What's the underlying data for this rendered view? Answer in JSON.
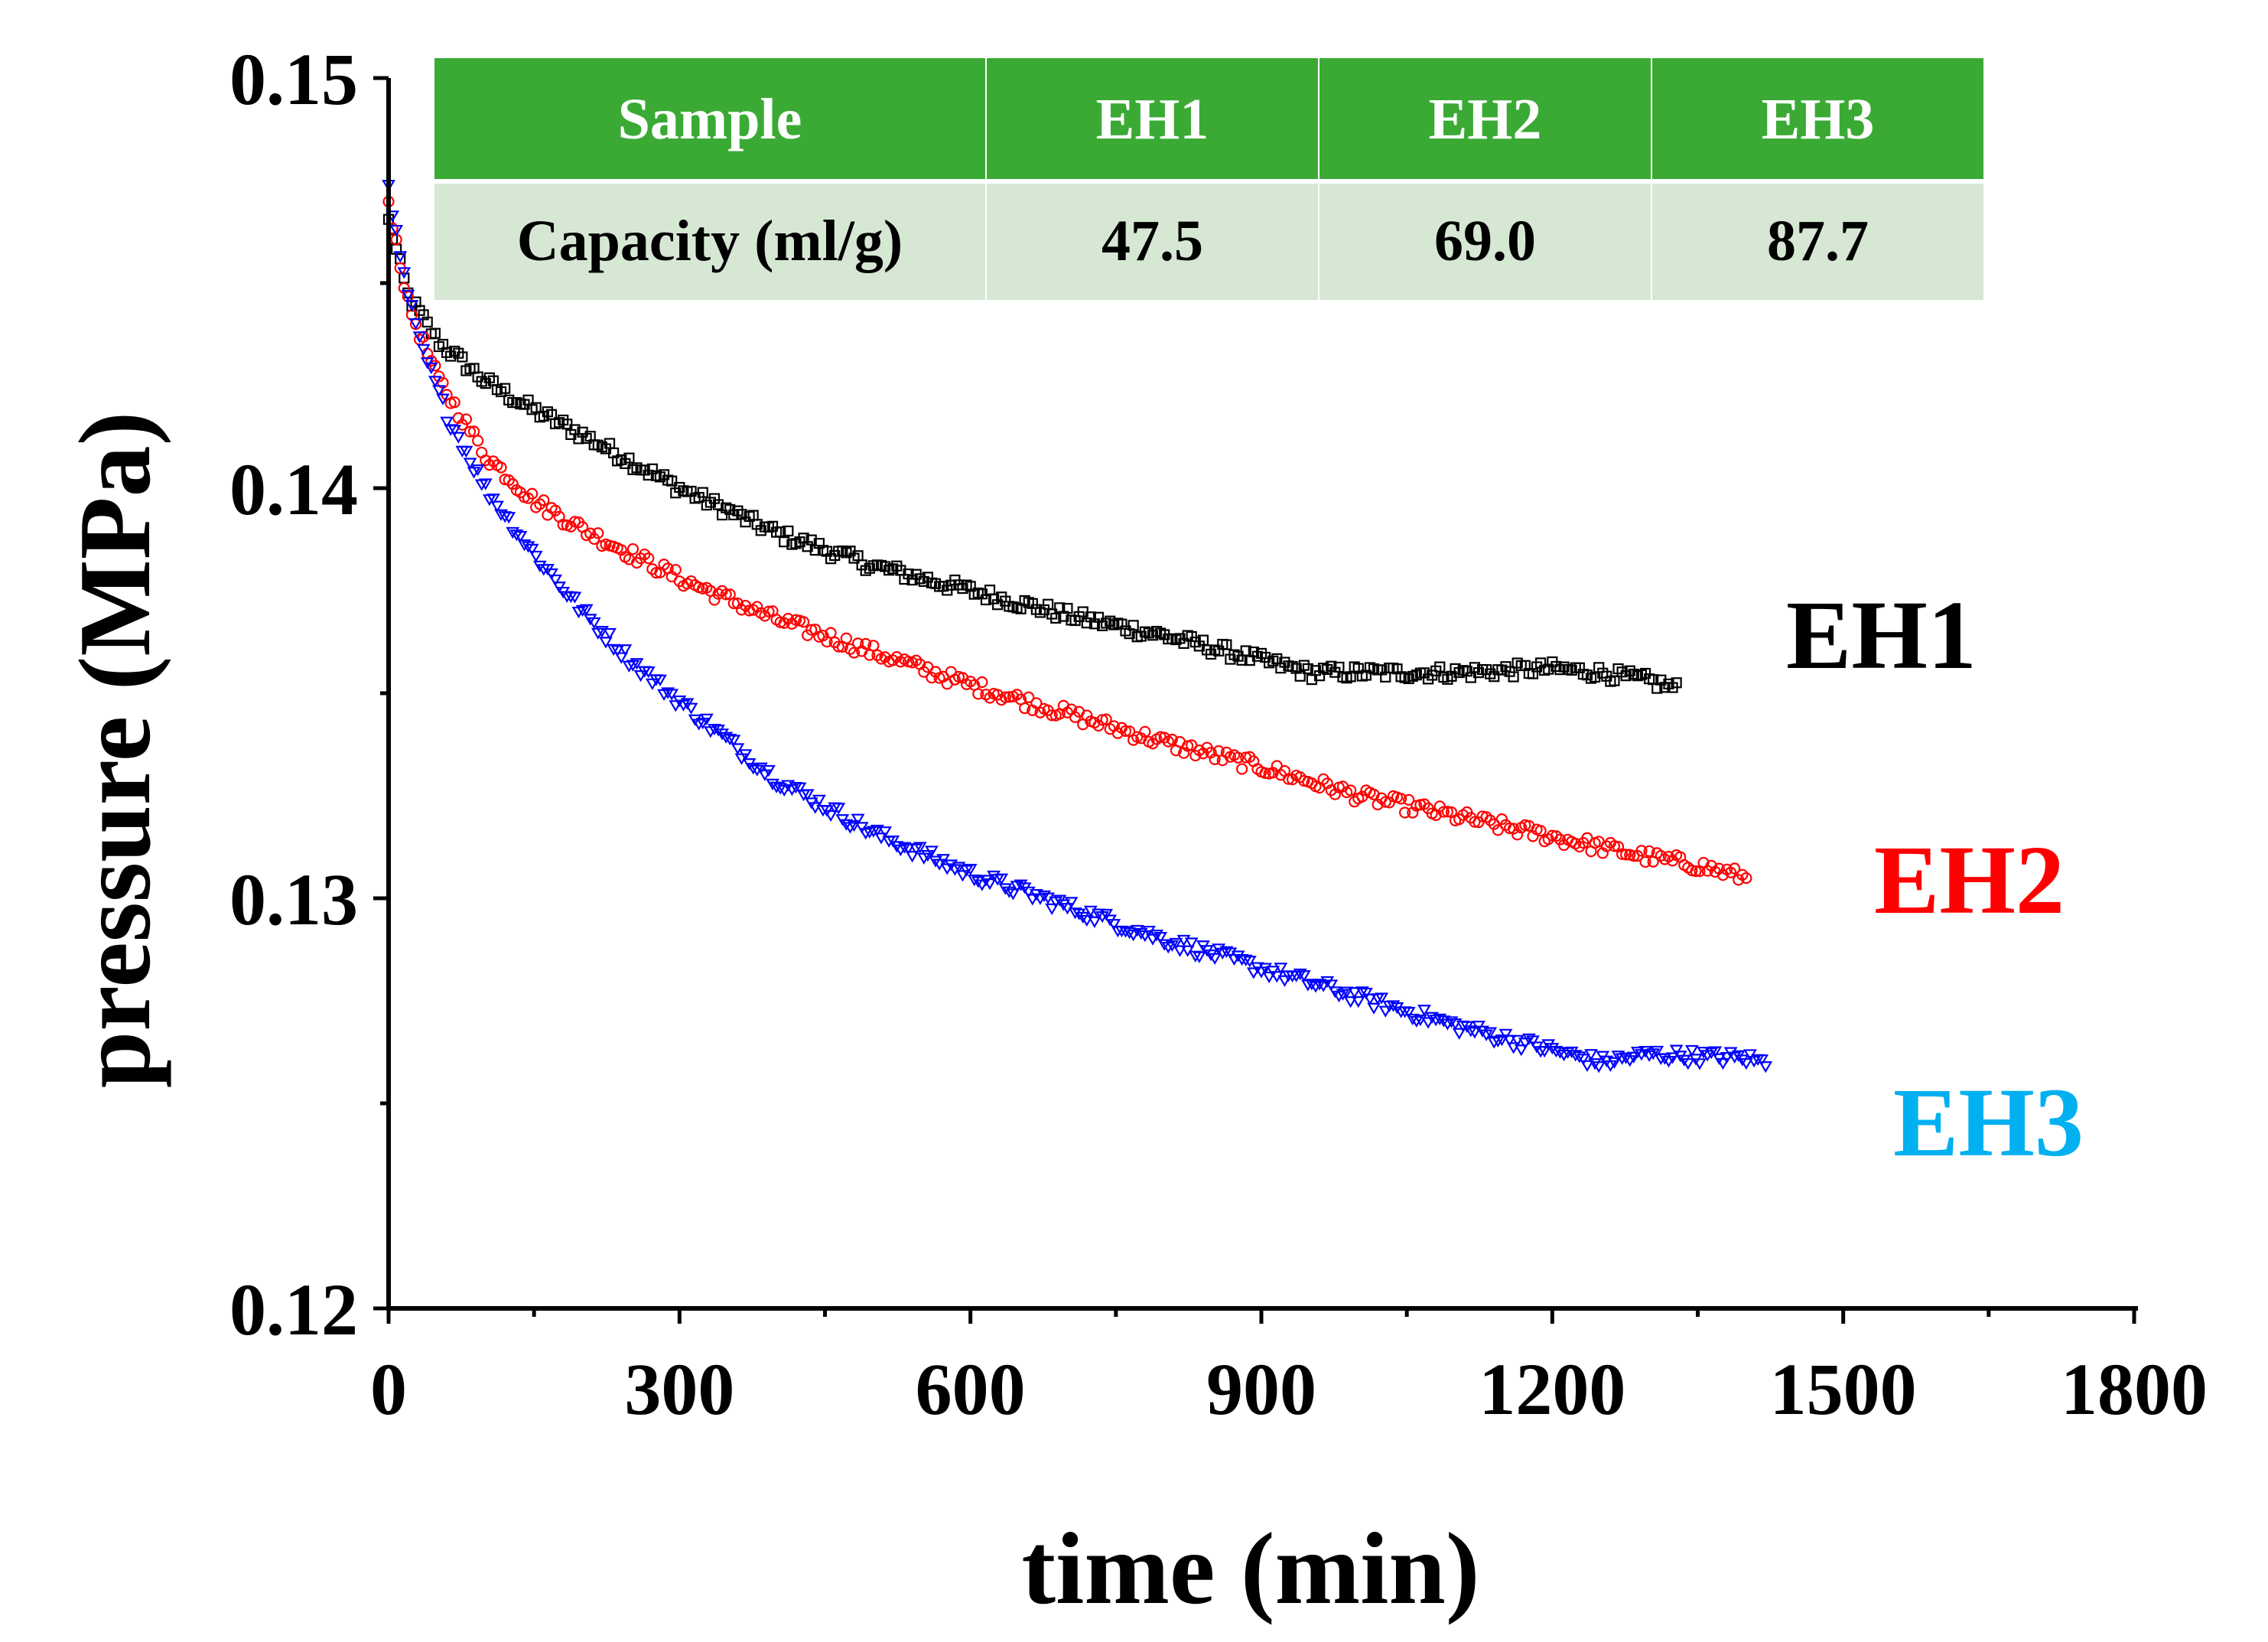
{
  "chart_data": {
    "type": "scatter",
    "title": "",
    "xlabel": "time (min)",
    "ylabel": "pressure (MPa)",
    "xlim": [
      0,
      1800
    ],
    "ylim": [
      0.12,
      0.15
    ],
    "xticks": [
      0,
      300,
      600,
      900,
      1200,
      1500,
      1800
    ],
    "xtick_labels": [
      "0",
      "300",
      "600",
      "900",
      "1200",
      "1500",
      "1800"
    ],
    "yticks": [
      0.12,
      0.13,
      0.14,
      0.15
    ],
    "ytick_labels": [
      "0.12",
      "0.13",
      "0.14",
      "0.15"
    ],
    "grid": false,
    "series": [
      {
        "name": "EH1",
        "label": "EH1",
        "color": "#000000",
        "marker": "square",
        "x": [
          0,
          20,
          50,
          100,
          150,
          200,
          300,
          400,
          500,
          600,
          700,
          800,
          900,
          950,
          1000,
          1100,
          1200,
          1250,
          1300,
          1330
        ],
        "y": [
          0.1465,
          0.1447,
          0.1436,
          0.1426,
          0.1419,
          0.1413,
          0.14,
          0.1389,
          0.1381,
          0.1375,
          0.1369,
          0.1364,
          0.1358,
          0.1355,
          0.1355,
          0.1355,
          0.1356,
          0.1355,
          0.1353,
          0.1351
        ]
      },
      {
        "name": "EH2",
        "label": "EH2",
        "color": "#ff0000",
        "marker": "circle",
        "x": [
          0,
          20,
          50,
          100,
          150,
          200,
          300,
          400,
          500,
          600,
          700,
          800,
          900,
          1000,
          1100,
          1200,
          1300,
          1350,
          1400
        ],
        "y": [
          0.147,
          0.1445,
          0.1427,
          0.1408,
          0.1397,
          0.139,
          0.1378,
          0.1368,
          0.136,
          0.1352,
          0.1345,
          0.1338,
          0.1332,
          0.1325,
          0.132,
          0.1315,
          0.131,
          0.1308,
          0.1305
        ]
      },
      {
        "name": "EH3",
        "label": "EH3",
        "color": "#0000ff",
        "label_color": "#00b0f0",
        "marker": "triangle-down",
        "x": [
          0,
          10,
          30,
          60,
          100,
          150,
          200,
          250,
          300,
          400,
          500,
          600,
          700,
          800,
          900,
          1000,
          1100,
          1200,
          1250,
          1300,
          1400,
          1420
        ],
        "y": [
          0.1475,
          0.1458,
          0.1437,
          0.1418,
          0.14,
          0.1384,
          0.137,
          0.1358,
          0.1348,
          0.1329,
          0.1316,
          0.1306,
          0.1298,
          0.129,
          0.1283,
          0.1276,
          0.1269,
          0.1263,
          0.126,
          0.1262,
          0.1261,
          0.126
        ]
      }
    ],
    "table": {
      "header_color": "#3aaa35",
      "body_color": "#d6e8d4",
      "columns": [
        "Sample",
        "EH1",
        "EH2",
        "EH3"
      ],
      "rows": [
        [
          "Capacity (ml/g)",
          "47.5",
          "69.0",
          "87.7"
        ]
      ]
    }
  }
}
